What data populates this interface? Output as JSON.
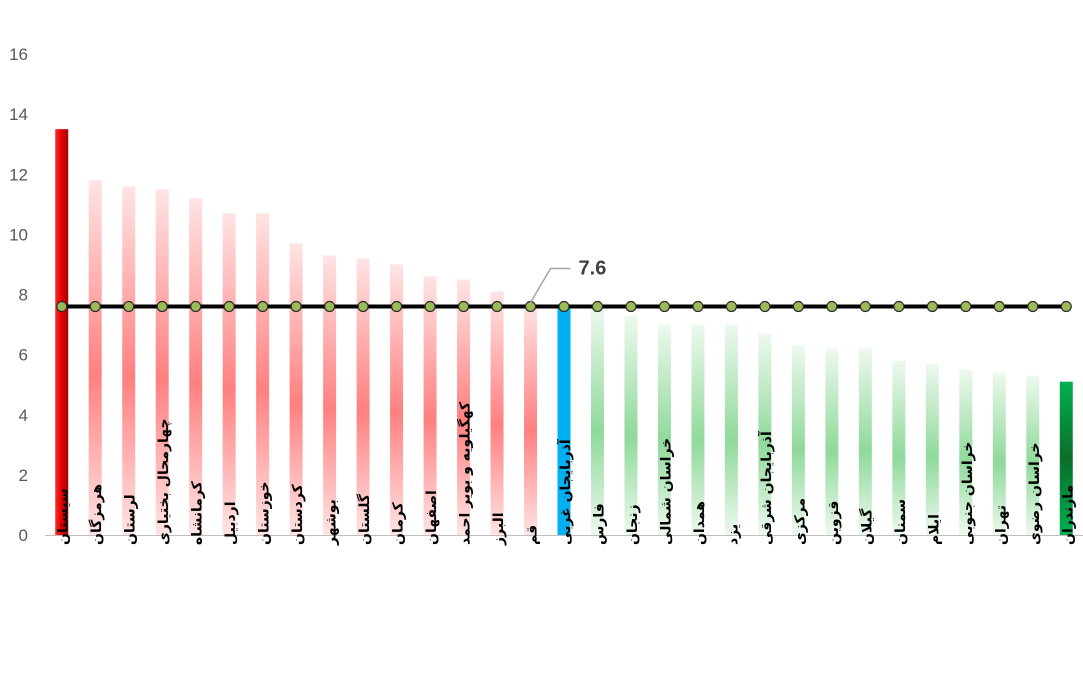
{
  "chart_data": {
    "type": "bar",
    "title": "",
    "xlabel": "",
    "ylabel": "",
    "ylim": [
      0,
      16
    ],
    "yticks": [
      "0",
      "2",
      "4",
      "6",
      "8",
      "10",
      "12",
      "14",
      "16"
    ],
    "grid": false,
    "legend": "none",
    "categories": [
      "سیستان",
      "هرمزگان",
      "لرستان",
      "چهارمحال بختیاری",
      "کرمانشاه",
      "اردبیل",
      "خوزستان",
      "کردستان",
      "بوشهر",
      "گلستان",
      "کرمان",
      "اصفهان",
      "کهگیلویه و بویر احمد",
      "البرز",
      "قم",
      "آذربایجان غربی",
      "فارس",
      "زنجان",
      "خراسان شمالی",
      "همدان",
      "یزد",
      "آذربایجان شرقی",
      "مرکزی",
      "قزوین",
      "گیلان",
      "سمنان",
      "ایلام",
      "خراسان جنوبی",
      "تهران",
      "خراسان رضوی",
      "مازندران"
    ],
    "series": [
      {
        "values": [
          13.5,
          11.8,
          11.6,
          11.5,
          11.2,
          10.7,
          10.7,
          9.7,
          9.3,
          9.2,
          9.0,
          8.6,
          8.5,
          8.1,
          7.7,
          7.6,
          7.6,
          7.3,
          7.0,
          7.0,
          7.0,
          6.7,
          6.3,
          6.2,
          6.2,
          5.8,
          5.7,
          5.5,
          5.4,
          5.3,
          5.1
        ]
      }
    ],
    "average": {
      "value": 7.6,
      "label": "7.6"
    },
    "colors": {
      "highlight_high": "#e00000",
      "highlight_avg": "#00b0f0",
      "highlight_low": "#00b050",
      "above_avg_gradient": [
        "#ffe4e4",
        "#ff8080"
      ],
      "below_avg_gradient": [
        "#e8f6ea",
        "#8fd99a"
      ],
      "average_line": "#000000",
      "average_marker": "#9bbb59",
      "axis": "#bfbfbf"
    }
  }
}
